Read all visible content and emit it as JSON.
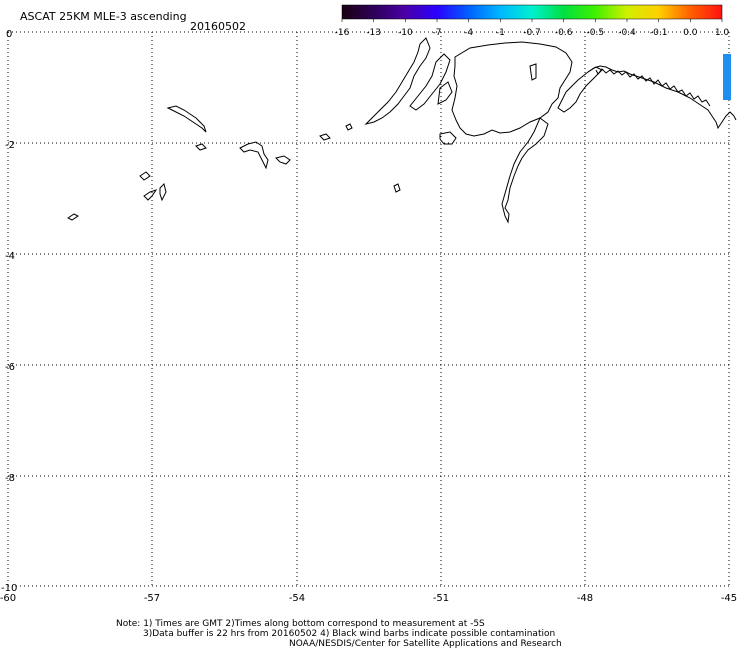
{
  "title": "ASCAT 25KM MLE-3 ascending",
  "date": "20160502",
  "colorbar": {
    "labels": [
      "-16",
      "-13",
      "-10",
      "-7",
      "-4",
      "-1",
      "-0.7",
      "-0.6",
      "-0.5",
      "-0.4",
      "-0.1",
      "0.0",
      "1.0"
    ],
    "colors": [
      "#1a0010",
      "#2e0058",
      "#4a00a8",
      "#2a00ff",
      "#0060ff",
      "#00b8ff",
      "#00f0d0",
      "#00e040",
      "#40f000",
      "#d0f000",
      "#ffd000",
      "#ff6000",
      "#ff1010"
    ]
  },
  "axes": {
    "x_ticks": [
      "-60",
      "-57",
      "-54",
      "-51",
      "-48",
      "-45"
    ],
    "y_ticks": [
      "0",
      "-2",
      "-4",
      "-6",
      "-8",
      "-10"
    ]
  },
  "notes": {
    "line1": "Note: 1) Times are GMT 2)Times along bottom correspond to measurement at -5S",
    "line2": "3)Data buffer is 22 hrs from 20160502 4) Black wind barbs indicate possible contamination",
    "line3": "NOAA/NESDIS/Center for Satellite Applications and Research"
  },
  "swath_color": "#1e8ff0"
}
